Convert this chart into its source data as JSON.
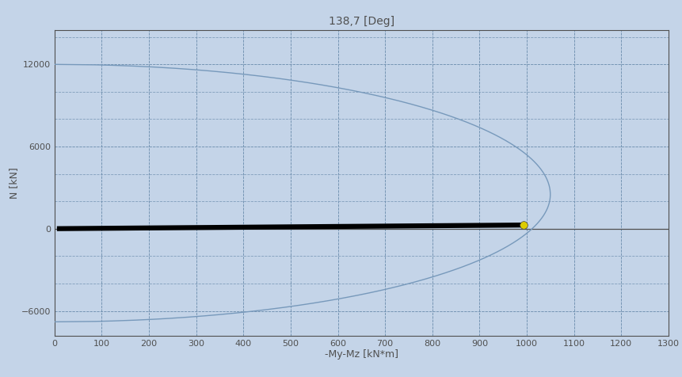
{
  "title": "138,7 [Deg]",
  "xlabel": "-My-Mz [kN*m]",
  "ylabel": "N [kN]",
  "background_color": "#c4d4e8",
  "plot_bg_color": "#c4d4e8",
  "grid_color": "#7090b0",
  "axis_color": "#505050",
  "title_color": "#505050",
  "label_color": "#505050",
  "tick_color": "#505050",
  "xlim": [
    0,
    1300
  ],
  "ylim": [
    -7800,
    14500
  ],
  "xticks": [
    0,
    100,
    200,
    300,
    400,
    500,
    600,
    700,
    800,
    900,
    1000,
    1100,
    1200,
    1300
  ],
  "yticks": [
    -6000,
    0,
    6000,
    12000
  ],
  "interaction_curve_color": "#7799bb",
  "interaction_curve_lw": 1.0,
  "load_line_color": "#000000",
  "load_line_lw": 4.5,
  "point_color": "#ddcc00",
  "point_size": 7,
  "point_x": 993,
  "point_y": 270,
  "load_start_x": 5,
  "load_start_y": 5,
  "load_end_x": 990,
  "load_end_y": 268,
  "N_max": 12000,
  "N_min": -6800,
  "N_balance": 2500,
  "M_max": 1050,
  "figsize": [
    8.61,
    4.76
  ],
  "dpi": 100
}
